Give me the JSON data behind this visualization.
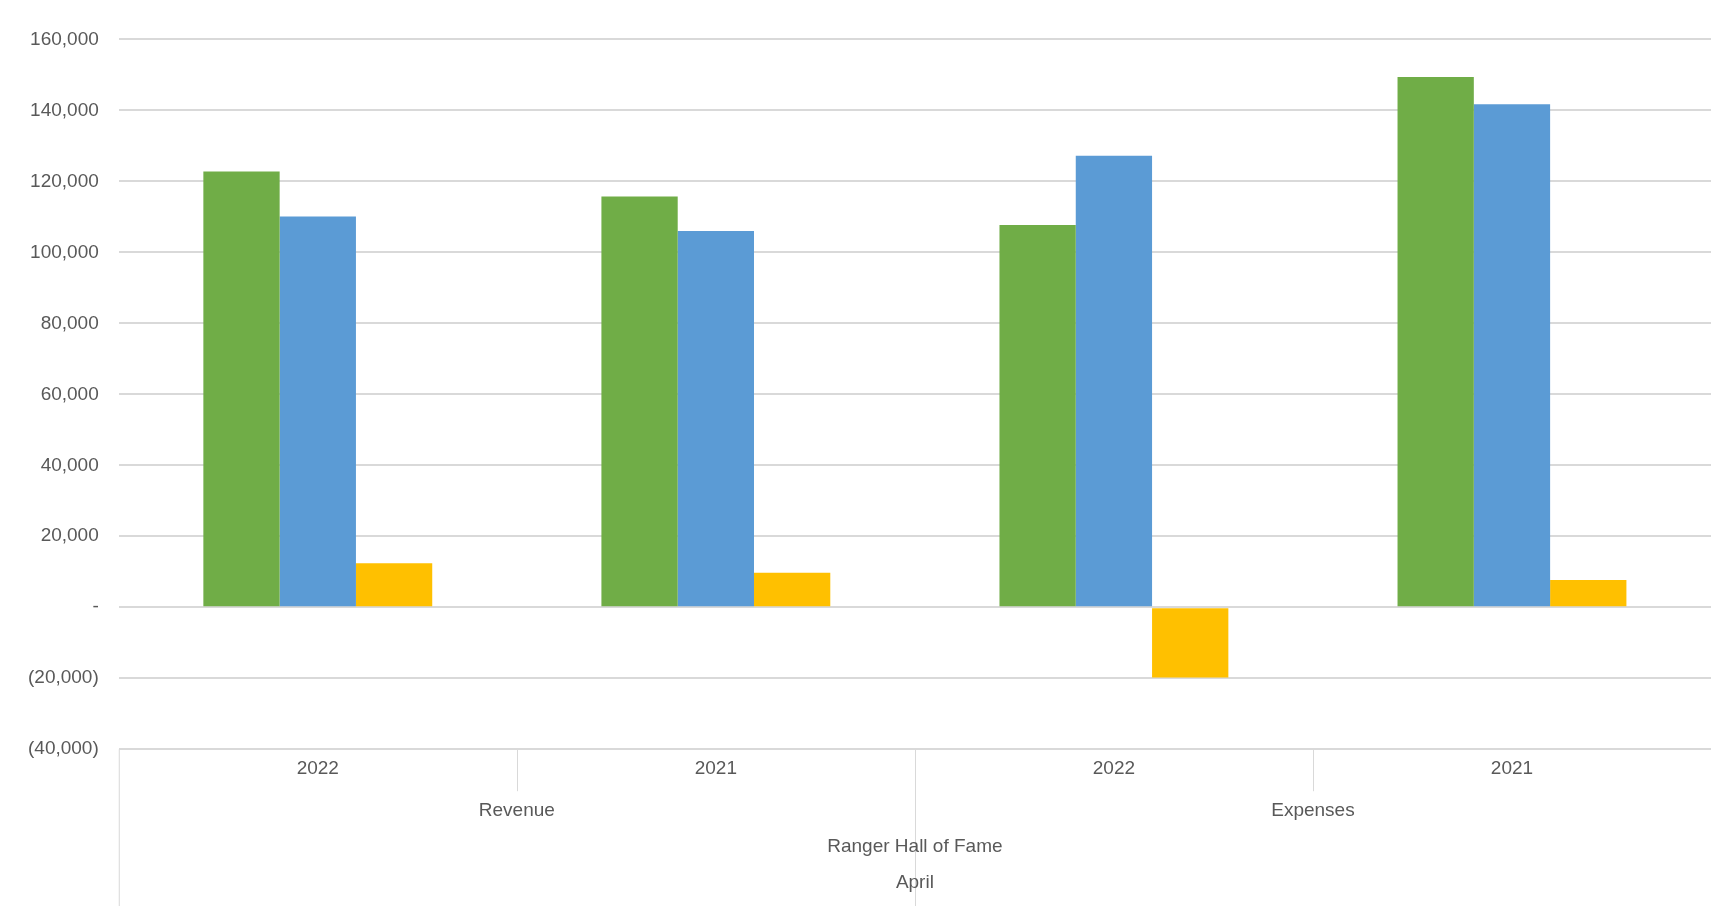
{
  "chart_data": {
    "type": "bar",
    "categories": [
      "2022",
      "2021",
      "2022",
      "2021"
    ],
    "series": [
      {
        "color": "#70ad47",
        "values": [
          122800,
          115700,
          107700,
          149400
        ]
      },
      {
        "color": "#5b9bd5",
        "values": [
          110100,
          106000,
          127200,
          141700
        ]
      },
      {
        "color": "#ffc000",
        "values": [
          12400,
          9700,
          -19800,
          7700
        ]
      }
    ],
    "annotations": [
      "Revenue",
      "Expenses",
      "Ranger Hall of Fame",
      "April"
    ],
    "ylim": [
      -40000,
      160000
    ],
    "yticks": [
      {
        "value": -40000,
        "label": "(40,000)"
      },
      {
        "value": -20000,
        "label": "(20,000)"
      },
      {
        "value": 0,
        "label": "-"
      },
      {
        "value": 20000,
        "label": "20,000"
      },
      {
        "value": 40000,
        "label": "40,000"
      },
      {
        "value": 60000,
        "label": "60,000"
      },
      {
        "value": 80000,
        "label": "80,000"
      },
      {
        "value": 100000,
        "label": "100,000"
      },
      {
        "value": 120000,
        "label": "120,000"
      },
      {
        "value": 140000,
        "label": "140,000"
      },
      {
        "value": 160000,
        "label": "160,000"
      }
    ],
    "grid": true,
    "legend": false
  }
}
